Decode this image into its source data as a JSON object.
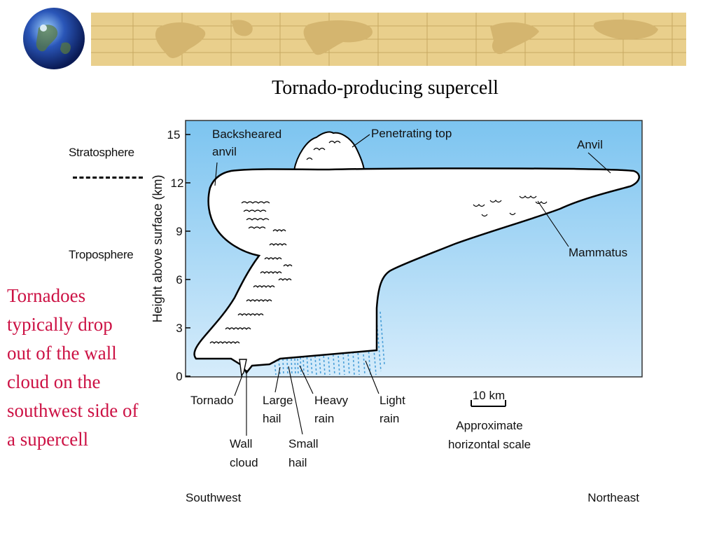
{
  "title": "Tornado-producing supercell",
  "caption": "Tornadoes typically drop out of the wall cloud on the southwest side of a supercell",
  "layers": {
    "upper": "Stratosphere",
    "lower": "Troposphere"
  },
  "axis": {
    "label": "Height above surface (km)",
    "ticks": [
      "0",
      "3",
      "6",
      "9",
      "12",
      "15"
    ]
  },
  "labels": {
    "backsheared_anvil_line1": "Backsheared",
    "backsheared_anvil_line2": "anvil",
    "penetrating_top": "Penetrating top",
    "anvil": "Anvil",
    "mammatus": "Mammatus",
    "tornado": "Tornado",
    "wall_cloud_line1": "Wall",
    "wall_cloud_line2": "cloud",
    "large_hail_line1": "Large",
    "large_hail_line2": "hail",
    "small_hail_line1": "Small",
    "small_hail_line2": "hail",
    "heavy_rain_line1": "Heavy",
    "heavy_rain_line2": "rain",
    "light_rain_line1": "Light",
    "light_rain_line2": "rain"
  },
  "scale": {
    "value": "10 km",
    "caption_line1": "Approximate",
    "caption_line2": "horizontal scale"
  },
  "directions": {
    "left": "Southwest",
    "right": "Northeast"
  },
  "colors": {
    "sky_top": "#7cc4f0",
    "sky_bottom": "#d6ecfb",
    "caption": "#cc1144",
    "precip": "#4a9fd8",
    "banner": "#e9cf8c"
  }
}
